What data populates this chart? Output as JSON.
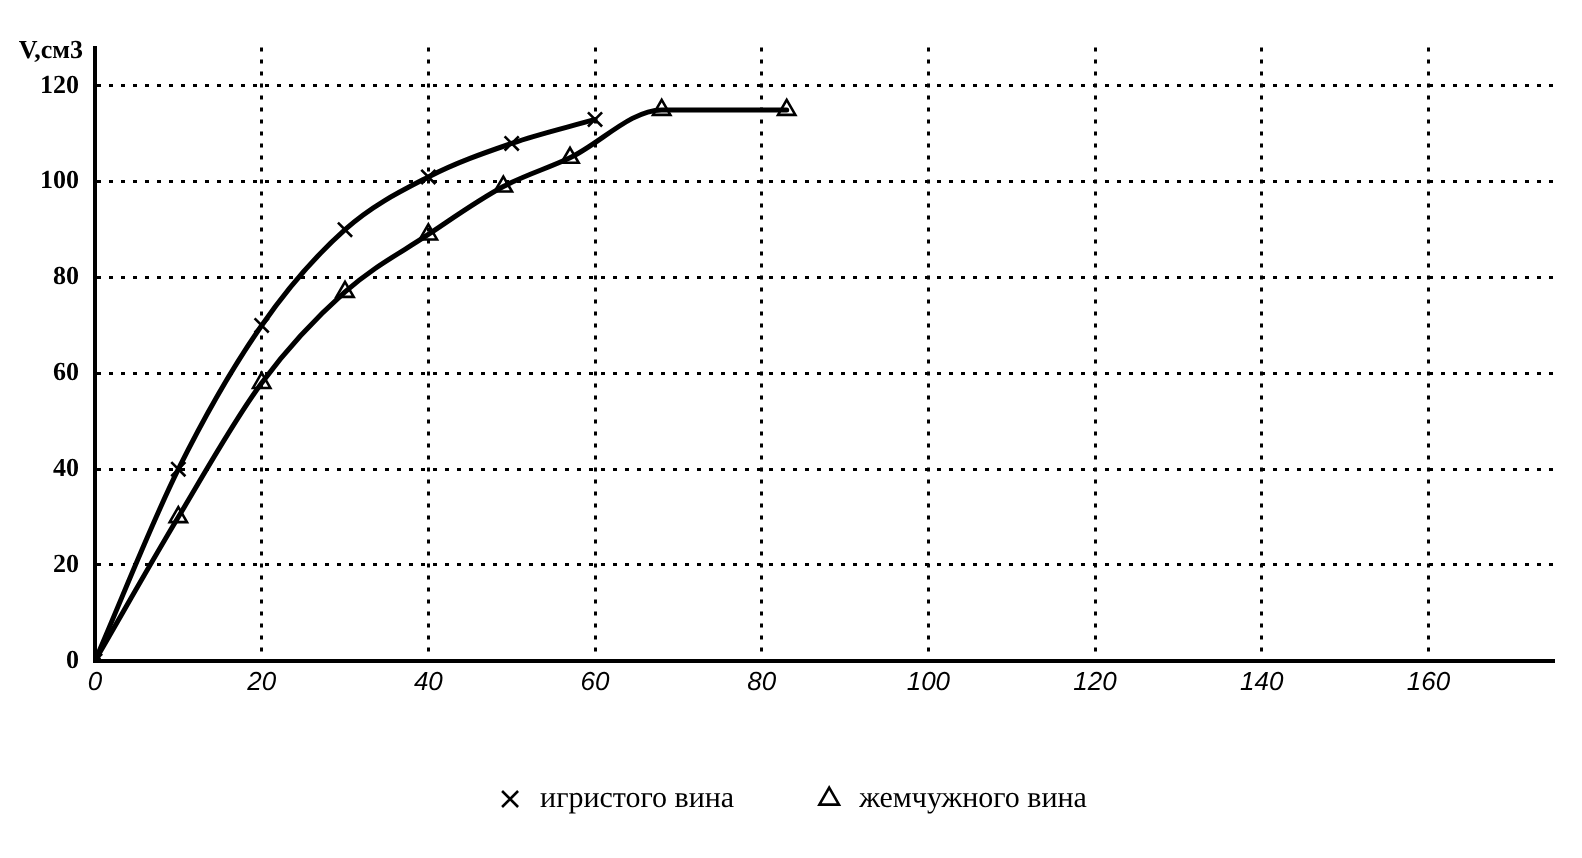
{
  "chart_data": {
    "type": "line",
    "ylabel": "V,см3",
    "xlim": [
      0,
      175
    ],
    "xticks": [
      0,
      20,
      40,
      60,
      80,
      100,
      120,
      140,
      160
    ],
    "ylim": [
      0,
      128
    ],
    "yticks": [
      0,
      20,
      40,
      60,
      80,
      100,
      120
    ],
    "grid": true,
    "legend": "bottom",
    "line_style": "solid",
    "series": [
      {
        "name": "игристого вина",
        "color": "#000000",
        "marker": "cross",
        "x": [
          0,
          10,
          20,
          30,
          40,
          50,
          60
        ],
        "values": [
          0,
          40,
          70,
          90,
          101,
          108,
          113
        ]
      },
      {
        "name": "жемчужного вина",
        "color": "#000000",
        "marker": "triangle",
        "x": [
          0,
          10,
          20,
          30,
          40,
          49,
          57,
          68,
          83
        ],
        "values": [
          0,
          30,
          58,
          77,
          89,
          99,
          105,
          115,
          115
        ]
      }
    ]
  }
}
